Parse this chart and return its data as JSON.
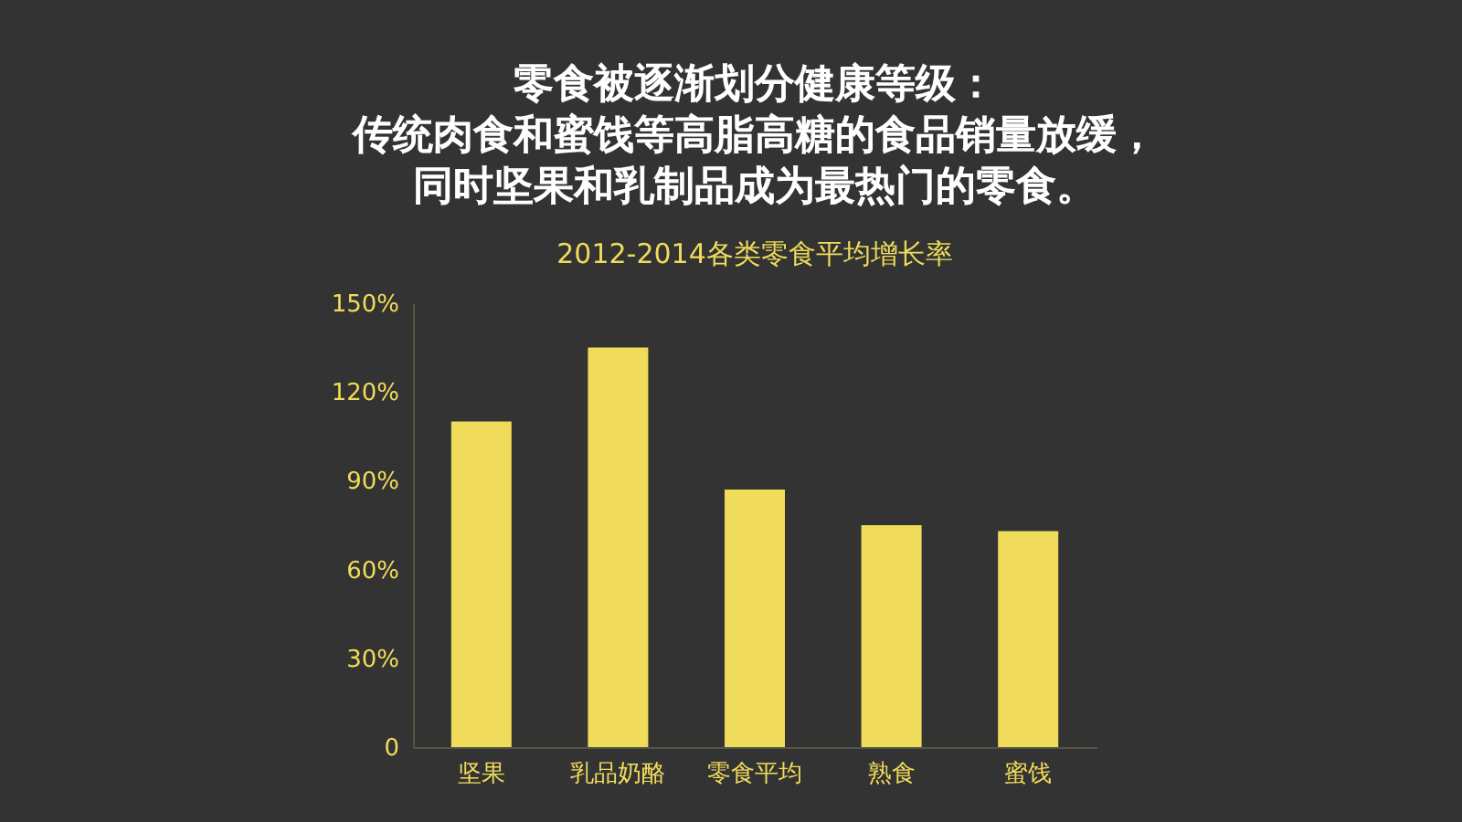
{
  "chart_data": {
    "type": "bar",
    "title": "零食被逐渐划分健康等级：传统肉食和蜜饯等高脂高糖的食品销量放缓，同时坚果和乳制品成为最热门的零食。",
    "subtitle": "2012-2014各类零食平均增长率",
    "categories": [
      "坚果",
      "乳品奶酪",
      "零食平均",
      "熟食",
      "蜜饯"
    ],
    "values": [
      110,
      135,
      87,
      75,
      73
    ],
    "color": "#f0dc5a",
    "ylim": [
      0,
      150
    ],
    "yticks": [
      {
        "value": 0,
        "label": "0"
      },
      {
        "value": 30,
        "label": "30%"
      },
      {
        "value": 60,
        "label": "60%"
      },
      {
        "value": 90,
        "label": "90%"
      },
      {
        "value": 120,
        "label": "120%"
      },
      {
        "value": 150,
        "label": "150%"
      }
    ],
    "grid": false
  }
}
